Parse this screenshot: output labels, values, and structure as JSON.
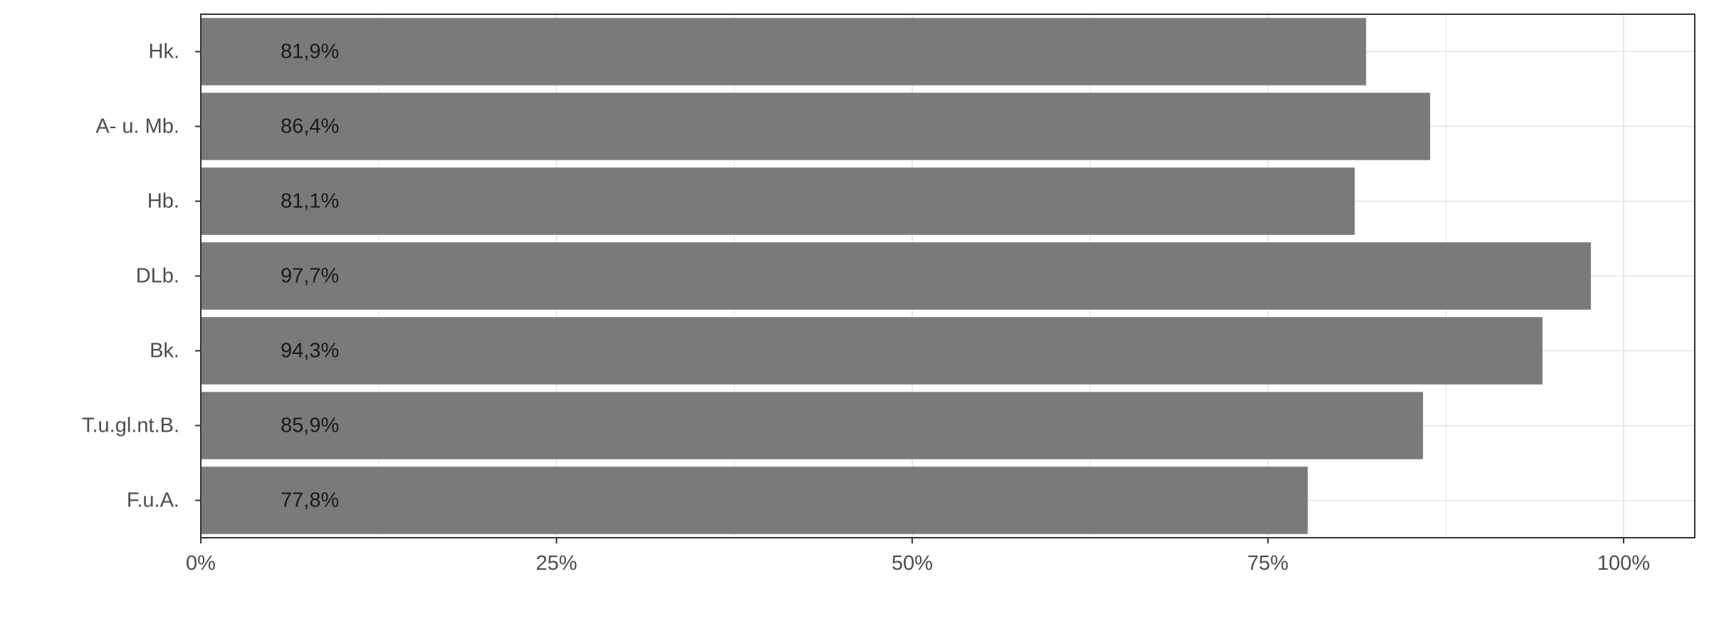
{
  "chart_data": {
    "type": "bar",
    "orientation": "horizontal",
    "categories": [
      "Hk.",
      "A- u. Mb.",
      "Hb.",
      "DLb.",
      "Bk.",
      "T.u.gl.nt.B.",
      "F.u.A."
    ],
    "values": [
      81.9,
      86.4,
      81.1,
      97.7,
      94.3,
      85.9,
      77.8
    ],
    "data_labels": [
      "81,9%",
      "86,4%",
      "81,1%",
      "97,7%",
      "94,3%",
      "85,9%",
      "77,8%"
    ],
    "x_ticks": [
      0,
      25,
      50,
      75,
      100
    ],
    "x_tick_labels": [
      "0%",
      "25%",
      "50%",
      "75%",
      "100%"
    ],
    "xlim": [
      0,
      105
    ],
    "title": "",
    "xlabel": "",
    "ylabel": "",
    "grid": true,
    "legend": "none",
    "colors": {
      "bar": "#7a7a7a",
      "grid": "#e3e3e3",
      "panel_border": "#333333",
      "tick_text": "#4d4d4d",
      "label_text": "#1a1a1a"
    }
  }
}
